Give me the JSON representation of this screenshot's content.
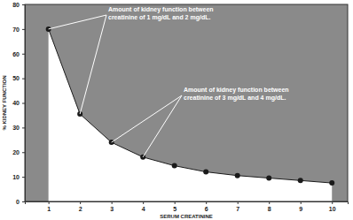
{
  "chart_data": {
    "type": "area",
    "x_label": "SERUM CREATININE",
    "y_label": "% KIDNEY FUNCTION",
    "color": "#8a8a8a",
    "x": [
      1,
      2,
      3,
      4,
      5,
      6,
      7,
      8,
      9,
      10
    ],
    "series": [
      {
        "name": "% Kidney Function",
        "color": "#1a1a1a",
        "marker": "circle",
        "values": [
          70,
          35.5,
          24,
          18,
          14.5,
          12,
          10.5,
          9.5,
          8.5,
          7.5
        ]
      }
    ],
    "xlim": [
      0.25,
      10.5
    ],
    "xticks": [
      1,
      2,
      3,
      4,
      5,
      6,
      7,
      8,
      9,
      10
    ],
    "ylim": [
      0,
      80
    ],
    "yticks": [
      0,
      10,
      20,
      30,
      40,
      50,
      60,
      70,
      80
    ],
    "grid": false,
    "annotations": [
      [
        "Amount of kidney function between",
        "creatinine of 1 mg/dL and 2 mg/dL."
      ],
      [
        "Amount of kidney function between",
        "creatinine of 3 mg/dL and 4 mg/dL."
      ]
    ]
  }
}
